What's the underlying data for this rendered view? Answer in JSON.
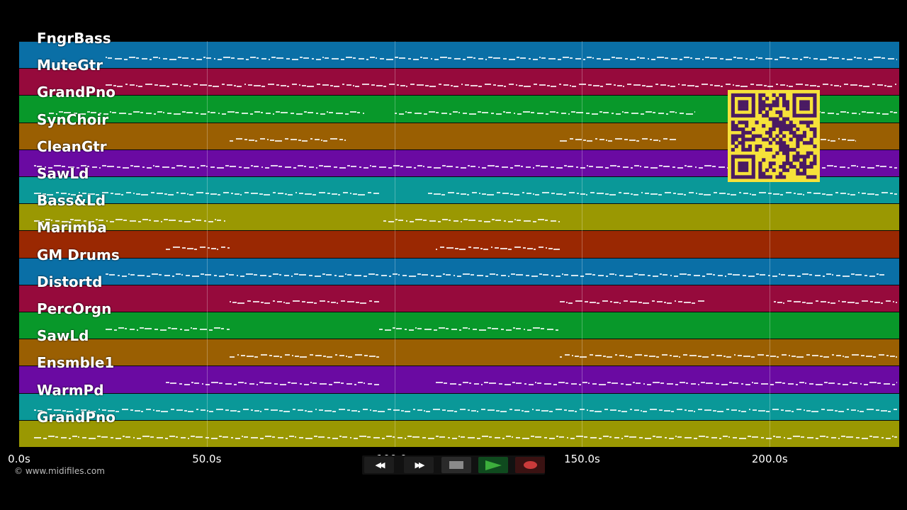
{
  "tracks": [
    {
      "name": "FngrBass",
      "color": "#0a6fa6"
    },
    {
      "name": "MuteGtr",
      "color": "#960a3c"
    },
    {
      "name": "GrandPno",
      "color": "#08982a"
    },
    {
      "name": "SynChoir",
      "color": "#9a5f02"
    },
    {
      "name": "CleanGtr",
      "color": "#6a0aa2"
    },
    {
      "name": "SawLd",
      "color": "#0a9898"
    },
    {
      "name": "Bass&Ld",
      "color": "#9a9802"
    },
    {
      "name": "Marimba",
      "color": "#9a2802"
    },
    {
      "name": "GM Drums",
      "color": "#0a6fa6"
    },
    {
      "name": "Distortd",
      "color": "#960a3c"
    },
    {
      "name": "PercOrgn",
      "color": "#08982a"
    },
    {
      "name": "SawLd",
      "color": "#9a5f02"
    },
    {
      "name": "Ensmble1",
      "color": "#6a0aa2"
    },
    {
      "name": "WarmPd",
      "color": "#0a9898"
    },
    {
      "name": "GrandPno",
      "color": "#9a9802"
    }
  ],
  "timeline": {
    "total_seconds": 234.5,
    "ticks": [
      {
        "value": 0,
        "label": "0.0s"
      },
      {
        "value": 50,
        "label": "50.0s"
      },
      {
        "value": 100,
        "label": "100.0s"
      },
      {
        "value": 150,
        "label": "150.0s"
      },
      {
        "value": 200,
        "label": "200.0s"
      }
    ]
  },
  "note_segments": [
    [
      [
        23,
        234
      ]
    ],
    [
      [
        23,
        234
      ]
    ],
    [
      [
        8,
        92
      ],
      [
        100,
        180
      ],
      [
        190,
        234
      ]
    ],
    [
      [
        56,
        87
      ],
      [
        144,
        175
      ],
      [
        190,
        223
      ]
    ],
    [
      [
        4,
        234
      ]
    ],
    [
      [
        4,
        96
      ],
      [
        109,
        234
      ]
    ],
    [
      [
        4,
        55
      ],
      [
        97,
        144
      ]
    ],
    [
      [
        39,
        56
      ],
      [
        111,
        144
      ]
    ],
    [
      [
        23,
        231
      ]
    ],
    [
      [
        56,
        96
      ],
      [
        144,
        183
      ],
      [
        201,
        234
      ]
    ],
    [
      [
        23,
        56
      ],
      [
        96,
        144
      ]
    ],
    [
      [
        56,
        96
      ],
      [
        144,
        234
      ]
    ],
    [
      [
        39,
        96
      ],
      [
        111,
        234
      ]
    ],
    [
      [
        4,
        234
      ]
    ],
    [
      [
        4,
        234
      ]
    ]
  ],
  "watermark": "© www.midifiles.com",
  "transport": {
    "rewind_label": "◀◀",
    "fastforward_label": "▶▶",
    "stop_color": "#8a8a8a",
    "play_color": "#3cae3c",
    "record_color": "#c93a3a"
  }
}
